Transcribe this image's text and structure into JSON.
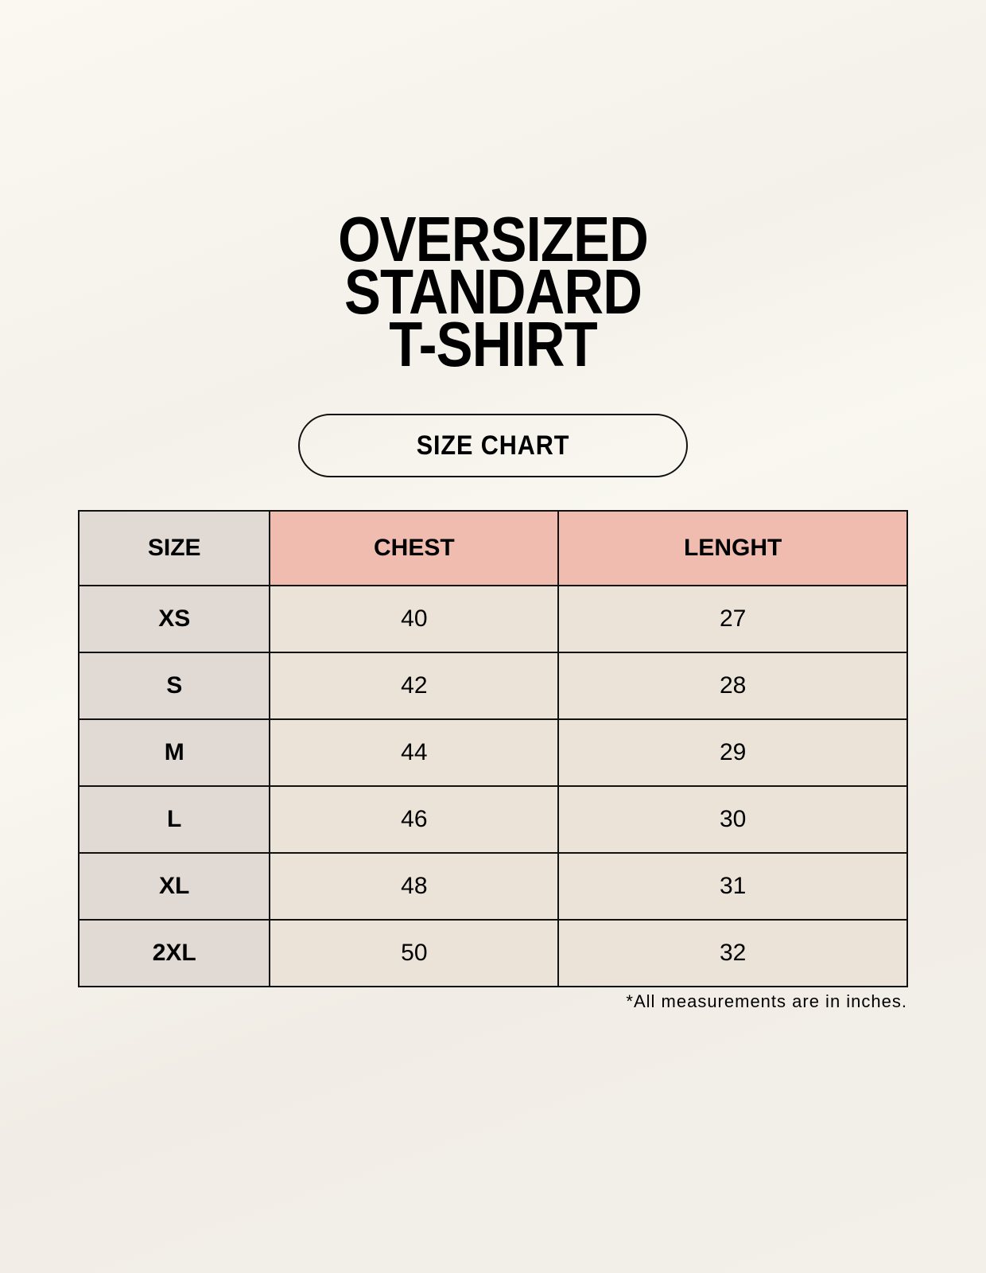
{
  "title_lines": [
    "OVERSIZED",
    "STANDARD",
    "T-SHIRT"
  ],
  "badge": "SIZE CHART",
  "table": {
    "headers": [
      "SIZE",
      "CHEST",
      "LENGHT"
    ],
    "rows": [
      [
        "XS",
        "40",
        "27"
      ],
      [
        "S",
        "42",
        "28"
      ],
      [
        "M",
        "44",
        "29"
      ],
      [
        "L",
        "46",
        "30"
      ],
      [
        "XL",
        "48",
        "31"
      ],
      [
        "2XL",
        "50",
        "32"
      ]
    ]
  },
  "footnote": "*All measurements are in inches.",
  "colors": {
    "size_column": "#e1d9d3",
    "header_accent": "#efbcaf",
    "cell": "#ebe3d8"
  }
}
